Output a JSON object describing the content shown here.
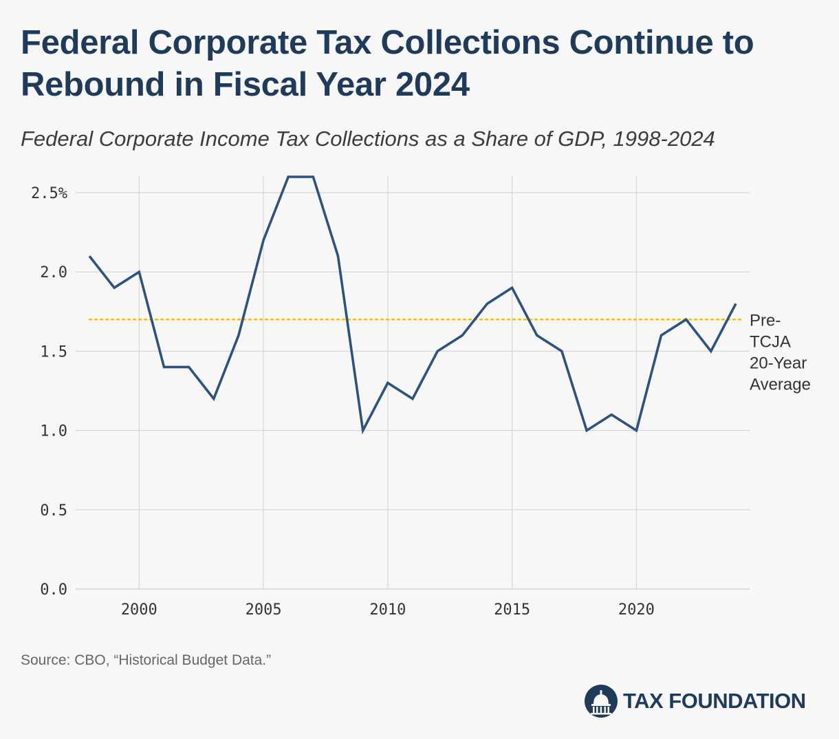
{
  "title": "Federal Corporate Tax Collections Continue to Rebound in Fiscal Year 2024",
  "subtitle": "Federal Corporate Income Tax Collections as a Share of GDP, 1998-2024",
  "source": "Source: CBO, “Historical Budget Data.”",
  "brand": {
    "name": "TAX FOUNDATION",
    "icon": "capitol-dome-icon",
    "color": "#1f3b5c"
  },
  "colors": {
    "line": "#2c5282",
    "reference": "#f2c500",
    "grid": "#d6d6d6"
  },
  "chart_data": {
    "type": "line",
    "x": [
      1998,
      1999,
      2000,
      2001,
      2002,
      2003,
      2004,
      2005,
      2006,
      2007,
      2008,
      2009,
      2010,
      2011,
      2012,
      2013,
      2014,
      2015,
      2016,
      2017,
      2018,
      2019,
      2020,
      2021,
      2022,
      2023,
      2024
    ],
    "series": [
      {
        "values": [
          2.1,
          1.9,
          2.0,
          1.4,
          1.4,
          1.2,
          1.6,
          2.2,
          2.6,
          2.6,
          2.1,
          1.0,
          1.3,
          1.2,
          1.5,
          1.6,
          1.8,
          1.9,
          1.6,
          1.5,
          1.0,
          1.1,
          1.0,
          1.6,
          1.7,
          1.5,
          1.8
        ]
      }
    ],
    "reference_line": {
      "value": 1.7,
      "label_lines": [
        "Pre-",
        "TCJA",
        "20-Year",
        "Average"
      ],
      "style": "dotted"
    },
    "xlim": [
      1998,
      2024
    ],
    "ylim": [
      0,
      2.6
    ],
    "x_ticks": [
      2000,
      2005,
      2010,
      2015,
      2020
    ],
    "y_ticks": [
      0,
      0.5,
      1,
      1.5,
      2,
      2.5
    ],
    "y_tick_labels": [
      "0.0",
      "0.5",
      "1.0",
      "1.5",
      "2.0",
      "2.5%"
    ],
    "x_tick_labels": [
      "2000",
      "2005",
      "2010",
      "2015",
      "2020"
    ],
    "grid": true,
    "legend": "none"
  }
}
